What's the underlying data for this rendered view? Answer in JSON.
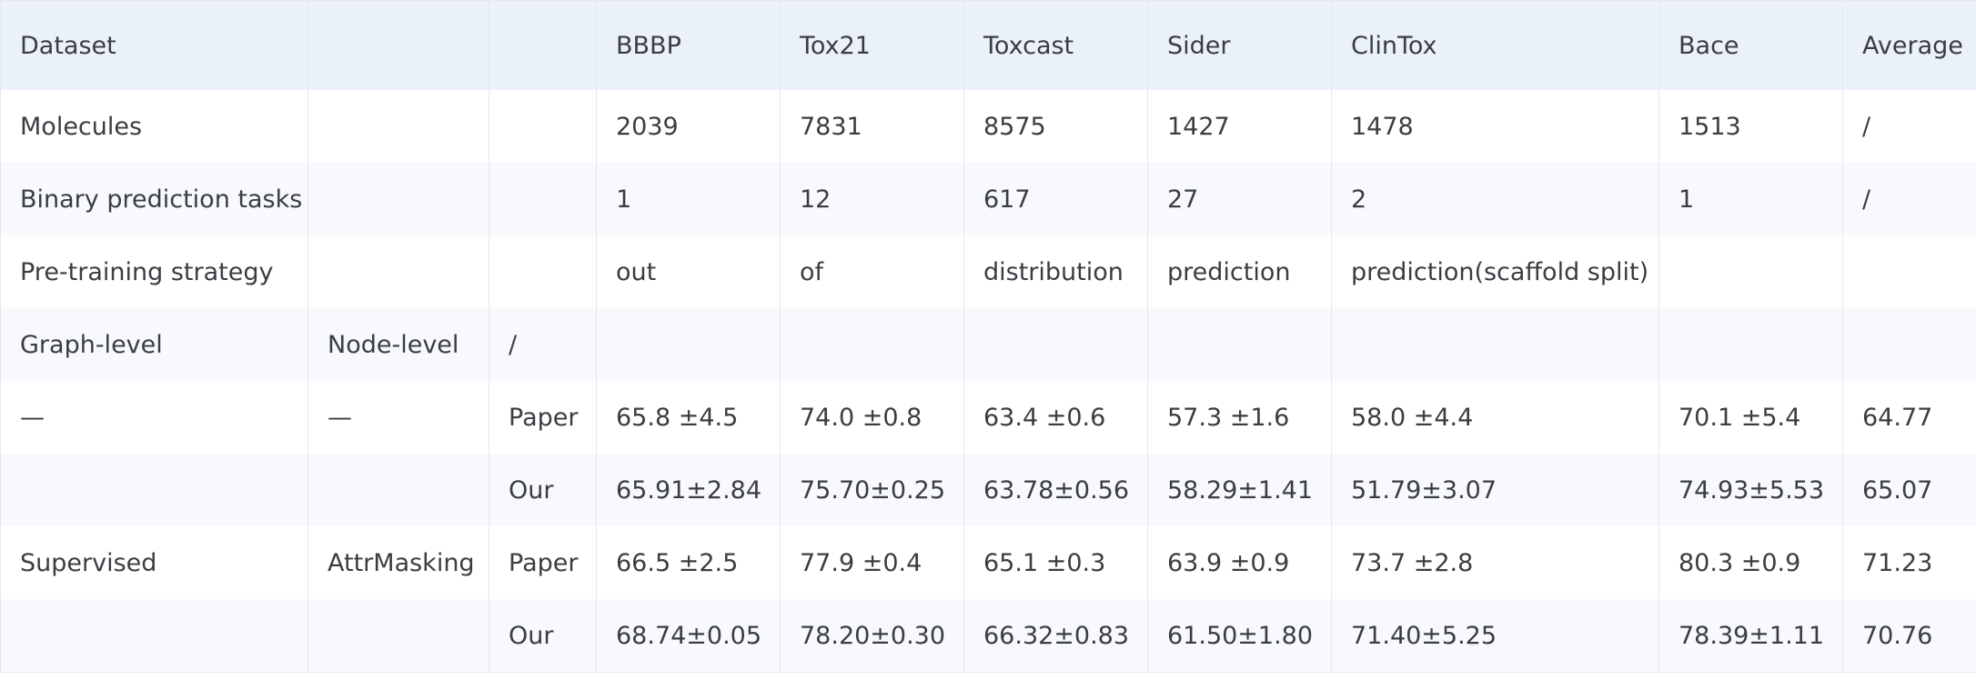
{
  "table": {
    "header": [
      "Dataset",
      "",
      "",
      "BBBP",
      "Tox21",
      "Toxcast",
      "Sider",
      "ClinTox",
      "Bace",
      "Average"
    ],
    "rows": [
      [
        "Molecules",
        "",
        "",
        "2039",
        "7831",
        "8575",
        "1427",
        "1478",
        "1513",
        "/"
      ],
      [
        "Binary prediction tasks",
        "",
        "",
        "1",
        "12",
        "617",
        "27",
        "2",
        "1",
        "/"
      ],
      [
        "Pre-training strategy",
        "",
        "",
        "out",
        "of",
        "distribution",
        "prediction",
        "prediction(scaffold split)",
        "",
        ""
      ],
      [
        "Graph-level",
        "Node-level",
        "/",
        "",
        "",
        "",
        "",
        "",
        "",
        ""
      ],
      [
        "—",
        "—",
        "Paper",
        "65.8 ±4.5",
        "74.0 ±0.8",
        "63.4 ±0.6",
        "57.3 ±1.6",
        "58.0 ±4.4",
        "70.1 ±5.4",
        "64.77"
      ],
      [
        "",
        "",
        "Our",
        "65.91±2.84",
        "75.70±0.25",
        "63.78±0.56",
        "58.29±1.41",
        "51.79±3.07",
        "74.93±5.53",
        "65.07"
      ],
      [
        "Supervised",
        "AttrMasking",
        "Paper",
        "66.5 ±2.5",
        "77.9 ±0.4",
        "65.1 ±0.3",
        "63.9 ±0.9",
        "73.7 ±2.8",
        "80.3 ±0.9",
        "71.23"
      ],
      [
        "",
        "",
        "Our",
        "68.74±0.05",
        "78.20±0.30",
        "66.32±0.83",
        "61.50±1.80",
        "71.40±5.25",
        "78.39±1.11",
        "70.76"
      ]
    ]
  }
}
